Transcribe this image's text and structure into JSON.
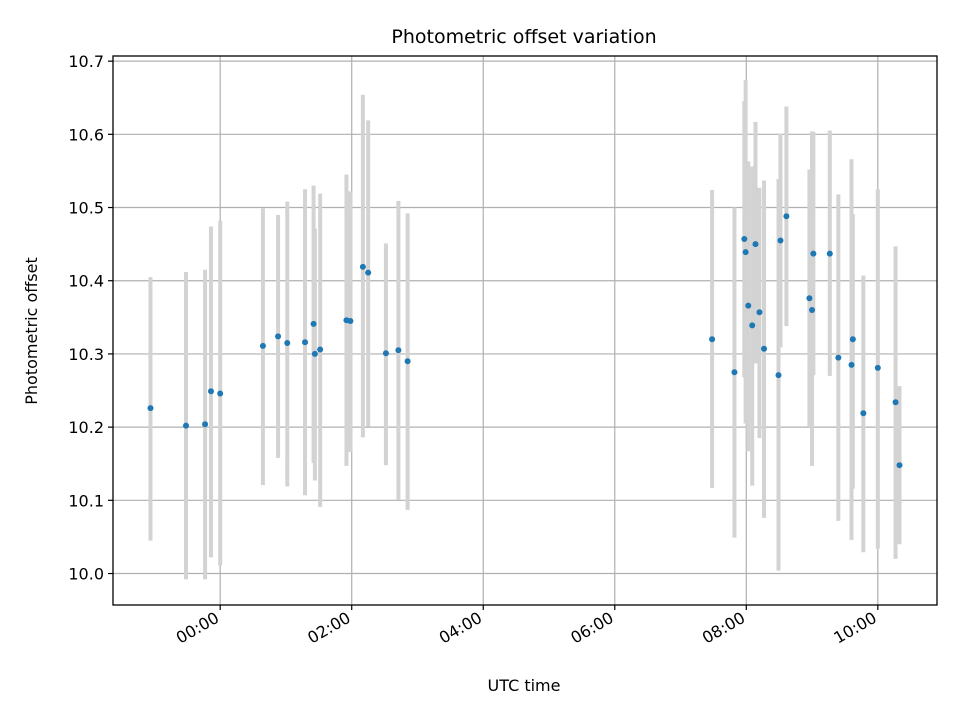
{
  "chart_data": {
    "type": "scatter",
    "title": "Photometric offset variation",
    "xlabel": "UTC time",
    "ylabel": "Photometric offset",
    "x_unit": "hours (UTC)",
    "xlim": [
      -1.63,
      10.9
    ],
    "ylim": [
      9.957,
      10.707
    ],
    "x_ticks": [
      {
        "value": 0,
        "label": "00:00"
      },
      {
        "value": 2,
        "label": "02:00"
      },
      {
        "value": 4,
        "label": "04:00"
      },
      {
        "value": 6,
        "label": "06:00"
      },
      {
        "value": 8,
        "label": "08:00"
      },
      {
        "value": 10,
        "label": "10:00"
      }
    ],
    "y_ticks": [
      {
        "value": 10.0,
        "label": "10.0"
      },
      {
        "value": 10.1,
        "label": "10.1"
      },
      {
        "value": 10.2,
        "label": "10.2"
      },
      {
        "value": 10.3,
        "label": "10.3"
      },
      {
        "value": 10.4,
        "label": "10.4"
      },
      {
        "value": 10.5,
        "label": "10.5"
      },
      {
        "value": 10.6,
        "label": "10.6"
      },
      {
        "value": 10.7,
        "label": "10.7"
      }
    ],
    "grid": true,
    "marker_color": "#1f77b4",
    "errorbar_color": "#d3d3d3",
    "points": [
      {
        "x": -1.06,
        "y": 10.226,
        "err_low": 10.045,
        "err_high": 10.405
      },
      {
        "x": -0.52,
        "y": 10.202,
        "err_low": 9.992,
        "err_high": 10.412
      },
      {
        "x": -0.23,
        "y": 10.204,
        "err_low": 9.992,
        "err_high": 10.415
      },
      {
        "x": -0.14,
        "y": 10.249,
        "err_low": 10.022,
        "err_high": 10.474
      },
      {
        "x": 0.0,
        "y": 10.246,
        "err_low": 10.011,
        "err_high": 10.482
      },
      {
        "x": 0.65,
        "y": 10.311,
        "err_low": 10.121,
        "err_high": 10.499
      },
      {
        "x": 0.88,
        "y": 10.324,
        "err_low": 10.158,
        "err_high": 10.49
      },
      {
        "x": 1.02,
        "y": 10.315,
        "err_low": 10.119,
        "err_high": 10.508
      },
      {
        "x": 1.29,
        "y": 10.316,
        "err_low": 10.107,
        "err_high": 10.525
      },
      {
        "x": 1.42,
        "y": 10.341,
        "err_low": 10.151,
        "err_high": 10.53
      },
      {
        "x": 1.44,
        "y": 10.3,
        "err_low": 10.127,
        "err_high": 10.471
      },
      {
        "x": 1.52,
        "y": 10.306,
        "err_low": 10.091,
        "err_high": 10.519
      },
      {
        "x": 1.92,
        "y": 10.346,
        "err_low": 10.147,
        "err_high": 10.545
      },
      {
        "x": 1.98,
        "y": 10.345,
        "err_low": 10.166,
        "err_high": 10.522
      },
      {
        "x": 2.17,
        "y": 10.419,
        "err_low": 10.186,
        "err_high": 10.654
      },
      {
        "x": 2.25,
        "y": 10.411,
        "err_low": 10.201,
        "err_high": 10.619
      },
      {
        "x": 2.52,
        "y": 10.301,
        "err_low": 10.148,
        "err_high": 10.451
      },
      {
        "x": 2.71,
        "y": 10.305,
        "err_low": 10.101,
        "err_high": 10.509
      },
      {
        "x": 2.85,
        "y": 10.29,
        "err_low": 10.087,
        "err_high": 10.492
      },
      {
        "x": 7.48,
        "y": 10.32,
        "err_low": 10.117,
        "err_high": 10.524
      },
      {
        "x": 7.82,
        "y": 10.275,
        "err_low": 10.049,
        "err_high": 10.5
      },
      {
        "x": 7.97,
        "y": 10.457,
        "err_low": 10.268,
        "err_high": 10.645
      },
      {
        "x": 7.99,
        "y": 10.439,
        "err_low": 10.205,
        "err_high": 10.674
      },
      {
        "x": 8.03,
        "y": 10.366,
        "err_low": 10.167,
        "err_high": 10.563
      },
      {
        "x": 8.09,
        "y": 10.339,
        "err_low": 10.12,
        "err_high": 10.556
      },
      {
        "x": 8.14,
        "y": 10.45,
        "err_low": 10.287,
        "err_high": 10.617
      },
      {
        "x": 8.2,
        "y": 10.357,
        "err_low": 10.185,
        "err_high": 10.527
      },
      {
        "x": 8.27,
        "y": 10.307,
        "err_low": 10.076,
        "err_high": 10.537
      },
      {
        "x": 8.49,
        "y": 10.271,
        "err_low": 10.004,
        "err_high": 10.539
      },
      {
        "x": 8.52,
        "y": 10.455,
        "err_low": 10.309,
        "err_high": 10.601
      },
      {
        "x": 8.61,
        "y": 10.488,
        "err_low": 10.338,
        "err_high": 10.638
      },
      {
        "x": 8.96,
        "y": 10.376,
        "err_low": 10.2,
        "err_high": 10.552
      },
      {
        "x": 9.0,
        "y": 10.36,
        "err_low": 10.147,
        "err_high": 10.604
      },
      {
        "x": 9.02,
        "y": 10.437,
        "err_low": 10.271,
        "err_high": 10.603
      },
      {
        "x": 9.27,
        "y": 10.437,
        "err_low": 10.27,
        "err_high": 10.605
      },
      {
        "x": 9.4,
        "y": 10.295,
        "err_low": 10.072,
        "err_high": 10.518
      },
      {
        "x": 9.6,
        "y": 10.285,
        "err_low": 10.046,
        "err_high": 10.566
      },
      {
        "x": 9.62,
        "y": 10.32,
        "err_low": 10.116,
        "err_high": 10.491
      },
      {
        "x": 9.78,
        "y": 10.219,
        "err_low": 10.029,
        "err_high": 10.407
      },
      {
        "x": 10.0,
        "y": 10.281,
        "err_low": 10.034,
        "err_high": 10.525
      },
      {
        "x": 10.27,
        "y": 10.234,
        "err_low": 10.02,
        "err_high": 10.447
      },
      {
        "x": 10.33,
        "y": 10.148,
        "err_low": 10.04,
        "err_high": 10.256
      }
    ]
  }
}
